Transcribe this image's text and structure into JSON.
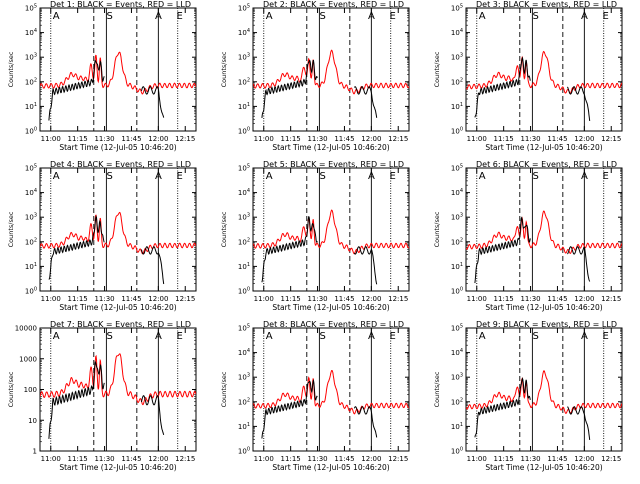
{
  "chart_data": [
    {
      "type": "line",
      "title": "Det 1: BLACK = Events, RED = LLD",
      "xlabel": "Start Time (12-Jul-05 10:46:20)",
      "ylabel": "Counts/sec",
      "yticks": [
        "10^0",
        "10^1",
        "10^2",
        "10^3",
        "10^4",
        "10^5"
      ],
      "xticks": [
        "11:00",
        "11:15",
        "11:30",
        "11:45",
        "12:00",
        "12:15"
      ],
      "markers": [
        "A",
        "S",
        "A",
        "E"
      ],
      "series": [
        {
          "color": "#000000"
        },
        {
          "color": "#ff0000"
        }
      ]
    },
    {
      "type": "line",
      "title": "Det 2: BLACK = Events, RED = LLD",
      "xlabel": "Start Time (12-Jul-05 10:46:20)",
      "ylabel": "Counts/sec",
      "yticks": [
        "10^0",
        "10^1",
        "10^2",
        "10^3",
        "10^4",
        "10^5"
      ],
      "xticks": [
        "11:00",
        "11:15",
        "11:30",
        "11:45",
        "12:00",
        "12:15"
      ],
      "markers": [
        "A",
        "S",
        "A",
        "E"
      ],
      "series": [
        {
          "color": "#000000"
        },
        {
          "color": "#ff0000"
        }
      ]
    },
    {
      "type": "line",
      "title": "Det 3: BLACK = Events, RED = LLD",
      "xlabel": "Start Time (12-Jul-05 10:46:20)",
      "ylabel": "Counts/sec",
      "yticks": [
        "10^0",
        "10^1",
        "10^2",
        "10^3",
        "10^4",
        "10^5"
      ],
      "xticks": [
        "11:00",
        "11:15",
        "11:30",
        "11:45",
        "12:00",
        "12:15"
      ],
      "markers": [
        "A",
        "S",
        "A",
        "E"
      ],
      "series": [
        {
          "color": "#000000"
        },
        {
          "color": "#ff0000"
        }
      ]
    },
    {
      "type": "line",
      "title": "Det 4: BLACK = Events, RED = LLD",
      "xlabel": "Start Time (12-Jul-05 10:46:20)",
      "ylabel": "Counts/sec",
      "yticks": [
        "10^0",
        "10^1",
        "10^2",
        "10^3",
        "10^4",
        "10^5"
      ],
      "xticks": [
        "11:00",
        "11:15",
        "11:30",
        "11:45",
        "12:00",
        "12:15"
      ],
      "markers": [
        "A",
        "S",
        "A",
        "E"
      ],
      "series": [
        {
          "color": "#000000"
        },
        {
          "color": "#ff0000"
        }
      ]
    },
    {
      "type": "line",
      "title": "Det 5: BLACK = Events, RED = LLD",
      "xlabel": "Start Time (12-Jul-05 10:46:20)",
      "ylabel": "Counts/sec",
      "yticks": [
        "10^0",
        "10^1",
        "10^2",
        "10^3",
        "10^4",
        "10^5"
      ],
      "xticks": [
        "11:00",
        "11:15",
        "11:30",
        "11:45",
        "12:00",
        "12:15"
      ],
      "markers": [
        "A",
        "S",
        "A",
        "E"
      ],
      "series": [
        {
          "color": "#000000"
        },
        {
          "color": "#ff0000"
        }
      ]
    },
    {
      "type": "line",
      "title": "Det 6: BLACK = Events, RED = LLD",
      "xlabel": "Start Time (12-Jul-05 10:46:20)",
      "ylabel": "Counts/sec",
      "yticks": [
        "10^0",
        "10^1",
        "10^2",
        "10^3",
        "10^4",
        "10^5"
      ],
      "xticks": [
        "11:00",
        "11:15",
        "11:30",
        "11:45",
        "12:00",
        "12:15"
      ],
      "markers": [
        "A",
        "S",
        "A",
        "E"
      ],
      "series": [
        {
          "color": "#000000"
        },
        {
          "color": "#ff0000"
        }
      ]
    },
    {
      "type": "line",
      "title": "Det 7: BLACK = Events, RED = LLD",
      "xlabel": "Start Time (12-Jul-05 10:46:20)",
      "ylabel": "Counts/sec",
      "yticks": [
        "1",
        "10",
        "100",
        "1000",
        "10000"
      ],
      "xticks": [
        "11:00",
        "11:15",
        "11:30",
        "11:45",
        "12:00",
        "12:15"
      ],
      "markers": [
        "A",
        "S",
        "A",
        "E"
      ],
      "series": [
        {
          "color": "#000000"
        },
        {
          "color": "#ff0000"
        }
      ]
    },
    {
      "type": "line",
      "title": "Det 8: BLACK = Events, RED = LLD",
      "xlabel": "Start Time (12-Jul-05 10:46:20)",
      "ylabel": "Counts/sec",
      "yticks": [
        "10^0",
        "10^1",
        "10^2",
        "10^3",
        "10^4",
        "10^5"
      ],
      "xticks": [
        "11:00",
        "11:15",
        "11:30",
        "11:45",
        "12:00",
        "12:15"
      ],
      "markers": [
        "A",
        "S",
        "A",
        "E"
      ],
      "series": [
        {
          "color": "#000000"
        },
        {
          "color": "#ff0000"
        }
      ]
    },
    {
      "type": "line",
      "title": "Det 9: BLACK = Events, RED = LLD",
      "xlabel": "Start Time (12-Jul-05 10:46:20)",
      "ylabel": "Counts/sec",
      "yticks": [
        "10^0",
        "10^1",
        "10^2",
        "10^3",
        "10^4",
        "10^5"
      ],
      "xticks": [
        "11:00",
        "11:15",
        "11:30",
        "11:45",
        "12:00",
        "12:15"
      ],
      "markers": [
        "A",
        "S",
        "A",
        "E"
      ],
      "series": [
        {
          "color": "#000000"
        },
        {
          "color": "#ff0000"
        }
      ]
    }
  ]
}
